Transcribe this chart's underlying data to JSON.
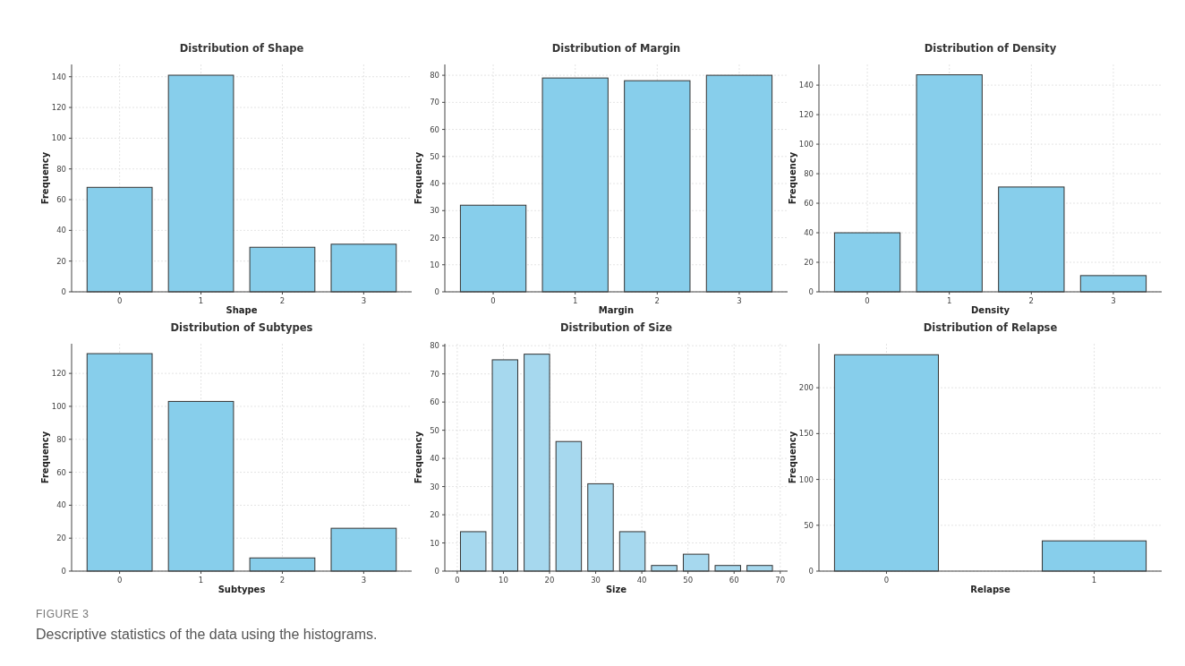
{
  "chart_data": [
    {
      "type": "bar",
      "title": "Distribution of Shape",
      "xlabel": "Shape",
      "ylabel": "Frequency",
      "categories": [
        "0",
        "1",
        "2",
        "3"
      ],
      "values": [
        68,
        141,
        29,
        31
      ],
      "color": "#87ceeb",
      "ylim": [
        0,
        148
      ],
      "yticks": [
        0,
        20,
        40,
        60,
        80,
        100,
        120,
        140
      ],
      "grid": true
    },
    {
      "type": "bar",
      "title": "Distribution of Margin",
      "xlabel": "Margin",
      "ylabel": "Frequency",
      "categories": [
        "0",
        "1",
        "2",
        "3"
      ],
      "values": [
        32,
        79,
        78,
        80
      ],
      "color": "#87ceeb",
      "ylim": [
        0,
        84
      ],
      "yticks": [
        0,
        10,
        20,
        30,
        40,
        50,
        60,
        70,
        80
      ],
      "grid": true
    },
    {
      "type": "bar",
      "title": "Distribution of Density",
      "xlabel": "Density",
      "ylabel": "Frequency",
      "categories": [
        "0",
        "1",
        "2",
        "3"
      ],
      "values": [
        40,
        147,
        71,
        11
      ],
      "color": "#87ceeb",
      "ylim": [
        0,
        154
      ],
      "yticks": [
        0,
        20,
        40,
        60,
        80,
        100,
        120,
        140
      ],
      "grid": true
    },
    {
      "type": "bar",
      "title": "Distribution of Subtypes",
      "xlabel": "Subtypes",
      "ylabel": "Frequency",
      "categories": [
        "0",
        "1",
        "2",
        "3"
      ],
      "values": [
        132,
        103,
        8,
        26
      ],
      "color": "#87ceeb",
      "ylim": [
        0,
        138
      ],
      "yticks": [
        0,
        20,
        40,
        60,
        80,
        100,
        120
      ],
      "grid": true
    },
    {
      "type": "histogram",
      "title": "Distribution of Size",
      "xlabel": "Size",
      "ylabel": "Frequency",
      "bins": [
        0,
        6.9,
        13.8,
        20.7,
        27.6,
        34.5,
        41.4,
        48.3,
        55.2,
        62.1,
        69
      ],
      "values": [
        14,
        75,
        77,
        46,
        31,
        14,
        2,
        6,
        2,
        2
      ],
      "color": "#a6d8ee",
      "xlim": [
        -2.7,
        71.6
      ],
      "xticks": [
        0,
        10,
        20,
        30,
        40,
        50,
        60,
        70
      ],
      "ylim": [
        0,
        80.7
      ],
      "yticks": [
        0,
        10,
        20,
        30,
        40,
        50,
        60,
        70,
        80
      ],
      "grid": true
    },
    {
      "type": "bar",
      "title": "Distribution of Relapse",
      "xlabel": "Relapse",
      "ylabel": "Frequency",
      "categories": [
        "0",
        "1"
      ],
      "values": [
        236,
        33
      ],
      "color": "#87ceeb",
      "ylim": [
        0,
        248
      ],
      "yticks": [
        0,
        50,
        100,
        150,
        200
      ],
      "grid": true,
      "annotations": [
        "FIGURE 3",
        "Descriptive statistics of the data using the histograms."
      ]
    }
  ]
}
